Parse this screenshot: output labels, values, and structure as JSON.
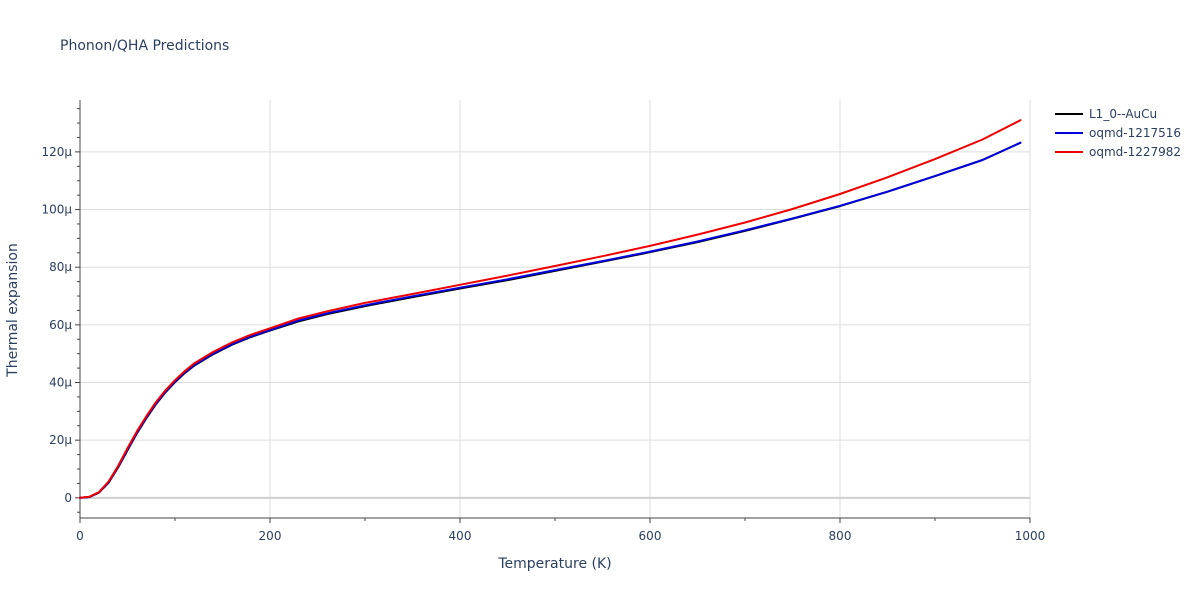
{
  "chart_data": {
    "type": "line",
    "title": "Phonon/QHA Predictions",
    "xlabel": "Temperature (K)",
    "ylabel": "Thermal expansion",
    "xlim": [
      0,
      1000
    ],
    "ylim": [
      -7,
      138
    ],
    "x_ticks": [
      0,
      200,
      400,
      600,
      800,
      1000
    ],
    "x_tick_labels": [
      "0",
      "200",
      "400",
      "600",
      "800",
      "1000"
    ],
    "y_ticks": [
      0,
      20,
      40,
      60,
      80,
      100,
      120
    ],
    "y_tick_labels": [
      "0",
      "20μ",
      "40μ",
      "60μ",
      "80μ",
      "100μ",
      "120μ"
    ],
    "grid": true,
    "legend_position": "top-right",
    "series": [
      {
        "name": "L1_0--AuCu",
        "color": "#000000",
        "x": [
          0,
          10,
          20,
          30,
          40,
          50,
          60,
          70,
          80,
          90,
          100,
          110,
          120,
          140,
          160,
          180,
          200,
          230,
          260,
          300,
          350,
          400,
          450,
          500,
          550,
          600,
          650,
          700,
          750,
          800,
          850,
          900,
          950,
          990
        ],
        "y": [
          0,
          0.3,
          1.8,
          5.2,
          10.5,
          16.5,
          22.4,
          27.7,
          32.5,
          36.6,
          40.1,
          43.2,
          45.8,
          49.8,
          53.1,
          55.8,
          58,
          61.2,
          63.7,
          66.5,
          69.6,
          72.6,
          75.5,
          78.7,
          81.9,
          85.2,
          88.7,
          92.6,
          96.8,
          101.2,
          106.2,
          111.6,
          117.2,
          123.2
        ]
      },
      {
        "name": "oqmd-1217516",
        "color": "#0000dd",
        "x": [
          0,
          10,
          20,
          30,
          40,
          50,
          60,
          70,
          80,
          90,
          100,
          110,
          120,
          140,
          160,
          180,
          200,
          230,
          260,
          300,
          350,
          400,
          450,
          500,
          550,
          600,
          650,
          700,
          750,
          800,
          850,
          900,
          950,
          990
        ],
        "y": [
          0,
          0.3,
          1.9,
          5.3,
          10.7,
          16.7,
          22.6,
          27.9,
          32.7,
          36.8,
          40.3,
          43.4,
          46,
          50,
          53.3,
          56,
          58.2,
          61.5,
          64,
          66.8,
          69.9,
          72.9,
          75.8,
          79,
          82.1,
          85.4,
          88.9,
          92.8,
          96.9,
          101.3,
          106.2,
          111.6,
          117.2,
          123.2
        ]
      },
      {
        "name": "oqmd-1227982",
        "color": "#ee0000",
        "x": [
          0,
          10,
          20,
          30,
          40,
          50,
          60,
          70,
          80,
          90,
          100,
          110,
          120,
          140,
          160,
          180,
          200,
          230,
          260,
          300,
          350,
          400,
          450,
          500,
          550,
          600,
          650,
          700,
          750,
          800,
          850,
          900,
          950,
          990
        ],
        "y": [
          0,
          0.4,
          2,
          5.6,
          11,
          17.2,
          23.1,
          28.4,
          33.2,
          37.3,
          40.8,
          43.9,
          46.6,
          50.6,
          53.9,
          56.6,
          58.8,
          62.2,
          64.7,
          67.6,
          70.7,
          73.9,
          77.1,
          80.4,
          83.8,
          87.4,
          91.3,
          95.5,
          100.2,
          105.4,
          111.2,
          117.5,
          124.3,
          131
        ]
      }
    ]
  }
}
